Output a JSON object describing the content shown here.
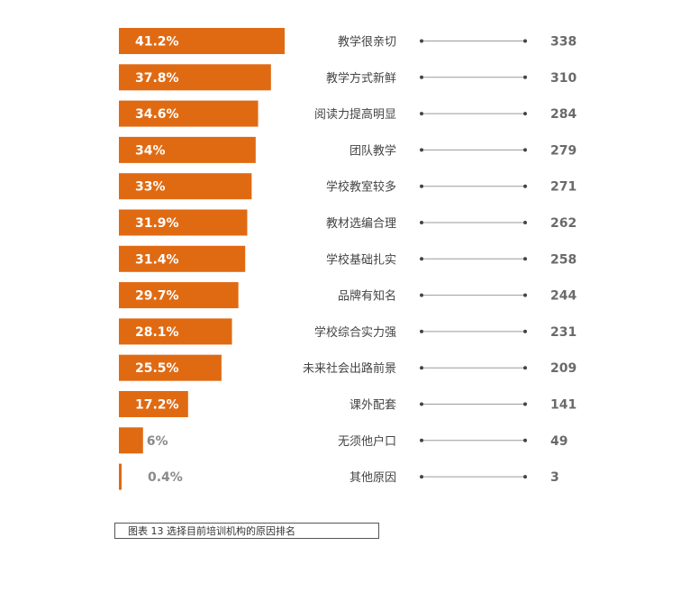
{
  "chart_data": {
    "type": "bar",
    "orientation": "horizontal",
    "colors": {
      "bar": "#e06a12"
    },
    "categories": [
      "教学很亲切",
      "教学方式新鲜",
      "阅读力提高明显",
      "团队教学",
      "学校教室较多",
      "教材选编合理",
      "学校基础扎实",
      "品牌有知名",
      "学校综合实力强",
      "未来社会出路前景",
      "课外配套",
      "无须他户口",
      "其他原因"
    ],
    "percent_labels": [
      "41.2%",
      "37.8%",
      "34.6%",
      "34%",
      "33%",
      "31.9%",
      "31.4%",
      "29.7%",
      "28.1%",
      "25.5%",
      "17.2%",
      "6%",
      "0.4%"
    ],
    "values": [
      41.2,
      37.8,
      34.6,
      34,
      33,
      31.9,
      31.4,
      29.7,
      28.1,
      25.5,
      17.2,
      6,
      0.4
    ],
    "counts": [
      "338",
      "310",
      "284",
      "279",
      "271",
      "262",
      "258",
      "244",
      "231",
      "209",
      "141",
      "49",
      "3"
    ]
  },
  "caption": "图表 13 选择目前培训机构的原因排名"
}
